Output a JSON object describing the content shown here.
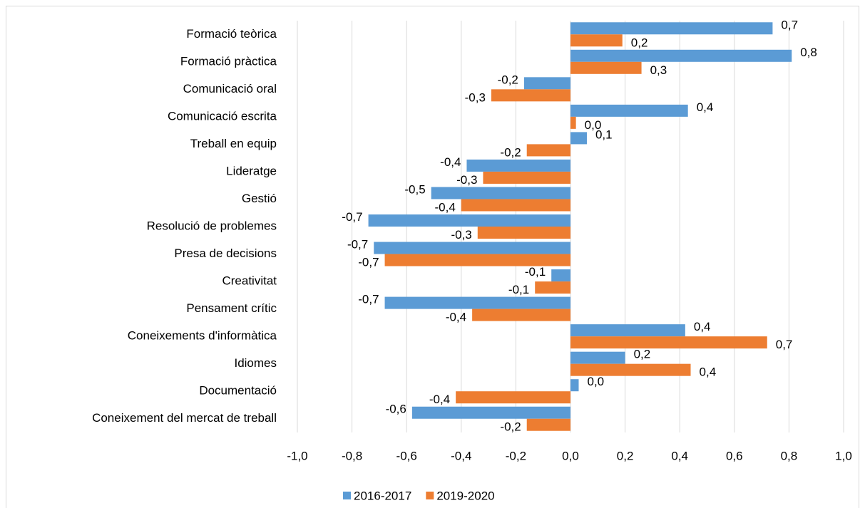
{
  "chart_data": {
    "type": "bar",
    "orientation": "horizontal",
    "categories": [
      "Formació teòrica",
      "Formació pràctica",
      "Comunicació oral",
      "Comunicació escrita",
      "Treball en equip",
      "Lideratge",
      "Gestió",
      "Resolució de problemes",
      "Presa de decisions",
      "Creativitat",
      "Pensament crític",
      "Coneixements d'informàtica",
      "Idiomes",
      "Documentació",
      "Coneixement del mercat de treball"
    ],
    "series": [
      {
        "name": "2016-2017",
        "color": "#5b9bd5",
        "values": [
          0.74,
          0.81,
          -0.17,
          0.43,
          0.06,
          -0.38,
          -0.51,
          -0.74,
          -0.72,
          -0.07,
          -0.68,
          0.42,
          0.2,
          0.03,
          -0.58
        ],
        "value_labels": [
          "0,7",
          "0,8",
          "-0,2",
          "0,4",
          "0,1",
          "-0,4",
          "-0,5",
          "-0,7",
          "-0,7",
          "-0,1",
          "-0,7",
          "0,4",
          "0,2",
          "0,0",
          "-0,6"
        ]
      },
      {
        "name": "2019-2020",
        "color": "#ed7d31",
        "values": [
          0.19,
          0.26,
          -0.29,
          0.02,
          -0.16,
          -0.32,
          -0.4,
          -0.34,
          -0.68,
          -0.13,
          -0.36,
          0.72,
          0.44,
          -0.42,
          -0.16
        ],
        "value_labels": [
          "0,2",
          "0,3",
          "-0,3",
          "0,0",
          "-0,2",
          "-0,3",
          "-0,4",
          "-0,3",
          "-0,7",
          "-0,1",
          "-0,4",
          "0,7",
          "0,4",
          "-0,4",
          "-0,2"
        ]
      }
    ],
    "xlim": [
      -1,
      1
    ],
    "xticks": [
      {
        "value": -1,
        "label": "-1,0"
      },
      {
        "value": -0.8,
        "label": "-0,8"
      },
      {
        "value": -0.6,
        "label": "-0,6"
      },
      {
        "value": -0.4,
        "label": "-0,4"
      },
      {
        "value": -0.2,
        "label": "-0,2"
      },
      {
        "value": 0,
        "label": "0,0"
      },
      {
        "value": 0.2,
        "label": "0,2"
      },
      {
        "value": 0.4,
        "label": "0,4"
      },
      {
        "value": 0.6,
        "label": "0,6"
      },
      {
        "value": 0.8,
        "label": "0,8"
      },
      {
        "value": 1,
        "label": "1,0"
      }
    ],
    "grid": true,
    "legend": "bottom"
  }
}
